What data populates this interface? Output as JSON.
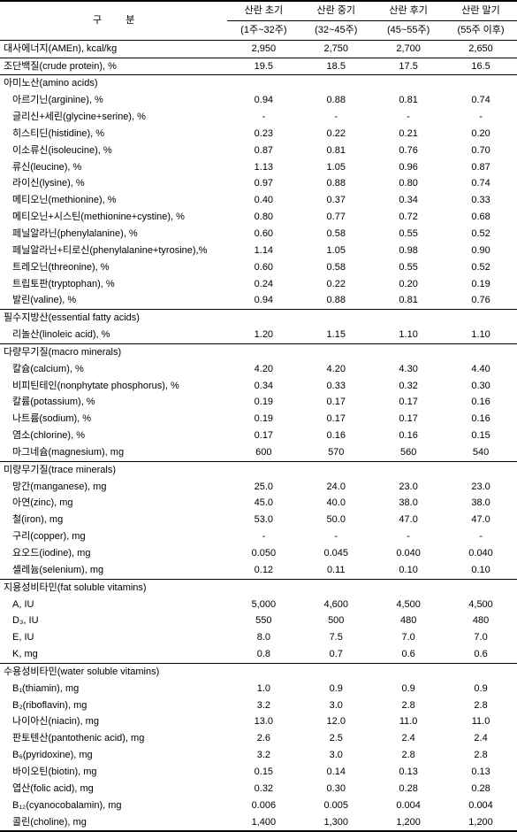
{
  "header": {
    "label": "구 분",
    "phases": [
      {
        "title": "산란 초기",
        "range": "(1주~32주)"
      },
      {
        "title": "산란 중기",
        "range": "(32~45주)"
      },
      {
        "title": "산란 후기",
        "range": "(45~55주)"
      },
      {
        "title": "산란 말기",
        "range": "(55주 이후)"
      }
    ]
  },
  "mainRows": {
    "energy": {
      "label": "대사에너지(AMEn), kcal/kg",
      "v": [
        "2,950",
        "2,750",
        "2,700",
        "2,650"
      ]
    },
    "protein": {
      "label": "조단백질(crude protein), %",
      "v": [
        "19.5",
        "18.5",
        "17.5",
        "16.5"
      ]
    }
  },
  "categories": [
    {
      "name": "아미노산(amino acids)",
      "items": [
        {
          "label": "아르기닌(arginine), %",
          "v": [
            "0.94",
            "0.88",
            "0.81",
            "0.74"
          ]
        },
        {
          "label": "글리신+세린(glycine+serine), %",
          "v": [
            "-",
            "-",
            "-",
            "-"
          ]
        },
        {
          "label": "히스티딘(histidine), %",
          "v": [
            "0.23",
            "0.22",
            "0.21",
            "0.20"
          ]
        },
        {
          "label": "이소류신(isoleucine), %",
          "v": [
            "0.87",
            "0.81",
            "0.76",
            "0.70"
          ]
        },
        {
          "label": "류신(leucine), %",
          "v": [
            "1.13",
            "1.05",
            "0.96",
            "0.87"
          ]
        },
        {
          "label": "라이신(lysine), %",
          "v": [
            "0.97",
            "0.88",
            "0.80",
            "0.74"
          ]
        },
        {
          "label": "메티오닌(methionine), %",
          "v": [
            "0.40",
            "0.37",
            "0.34",
            "0.33"
          ]
        },
        {
          "label": "메티오닌+시스틴(methionine+cystine), %",
          "v": [
            "0.80",
            "0.77",
            "0.72",
            "0.68"
          ]
        },
        {
          "label": "페닐알라닌(phenylalanine), %",
          "v": [
            "0.60",
            "0.58",
            "0.55",
            "0.52"
          ]
        },
        {
          "label": "페닐알라닌+티로신(phenylalanine+tyrosine),%",
          "v": [
            "1.14",
            "1.05",
            "0.98",
            "0.90"
          ]
        },
        {
          "label": "트레오닌(threonine), %",
          "v": [
            "0.60",
            "0.58",
            "0.55",
            "0.52"
          ]
        },
        {
          "label": "트립토판(tryptophan), %",
          "v": [
            "0.24",
            "0.22",
            "0.20",
            "0.19"
          ]
        },
        {
          "label": "발린(valine), %",
          "v": [
            "0.94",
            "0.88",
            "0.81",
            "0.76"
          ]
        }
      ]
    },
    {
      "name": "필수지방산(essential fatty acids)",
      "items": [
        {
          "label": "리놀산(linoleic acid), %",
          "v": [
            "1.20",
            "1.15",
            "1.10",
            "1.10"
          ]
        }
      ]
    },
    {
      "name": "다량무기질(macro minerals)",
      "items": [
        {
          "label": "칼슘(calcium), %",
          "v": [
            "4.20",
            "4.20",
            "4.30",
            "4.40"
          ]
        },
        {
          "label": "비피틴테인(nonphytate phosphorus), %",
          "v": [
            "0.34",
            "0.33",
            "0.32",
            "0.30"
          ]
        },
        {
          "label": "칼륨(potassium), %",
          "v": [
            "0.19",
            "0.17",
            "0.17",
            "0.16"
          ]
        },
        {
          "label": "나트륨(sodium), %",
          "v": [
            "0.19",
            "0.17",
            "0.17",
            "0.16"
          ]
        },
        {
          "label": "염소(chlorine), %",
          "v": [
            "0.17",
            "0.16",
            "0.16",
            "0.15"
          ]
        },
        {
          "label": "마그네슘(magnesium), mg",
          "v": [
            "600",
            "570",
            "560",
            "540"
          ]
        }
      ]
    },
    {
      "name": "미량무기질(trace minerals)",
      "items": [
        {
          "label": "망간(manganese), mg",
          "v": [
            "25.0",
            "24.0",
            "23.0",
            "23.0"
          ]
        },
        {
          "label": "아연(zinc), mg",
          "v": [
            "45.0",
            "40.0",
            "38.0",
            "38.0"
          ]
        },
        {
          "label": "철(iron), mg",
          "v": [
            "53.0",
            "50.0",
            "47.0",
            "47.0"
          ]
        },
        {
          "label": "구리(copper), mg",
          "v": [
            "-",
            "-",
            "-",
            "-"
          ]
        },
        {
          "label": "요오드(iodine), mg",
          "v": [
            "0.050",
            "0.045",
            "0.040",
            "0.040"
          ]
        },
        {
          "label": "셀레늄(selenium), mg",
          "v": [
            "0.12",
            "0.11",
            "0.10",
            "0.10"
          ]
        }
      ]
    },
    {
      "name": "지용성비타민(fat soluble vitamins)",
      "items": [
        {
          "label": "A, IU",
          "v": [
            "5,000",
            "4,600",
            "4,500",
            "4,500"
          ]
        },
        {
          "label": "D₃, IU",
          "v": [
            "550",
            "500",
            "480",
            "480"
          ]
        },
        {
          "label": "E, IU",
          "v": [
            "8.0",
            "7.5",
            "7.0",
            "7.0"
          ]
        },
        {
          "label": "K, mg",
          "v": [
            "0.8",
            "0.7",
            "0.6",
            "0.6"
          ]
        }
      ]
    },
    {
      "name": "수용성비타민(water soluble vitamins)",
      "items": [
        {
          "label": "B₁(thiamin), mg",
          "v": [
            "1.0",
            "0.9",
            "0.9",
            "0.9"
          ]
        },
        {
          "label": "B₂(riboflavin), mg",
          "v": [
            "3.2",
            "3.0",
            "2.8",
            "2.8"
          ]
        },
        {
          "label": "나이아신(niacin), mg",
          "v": [
            "13.0",
            "12.0",
            "11.0",
            "11.0"
          ]
        },
        {
          "label": "판토텐산(pantothenic acid), mg",
          "v": [
            "2.6",
            "2.5",
            "2.4",
            "2.4"
          ]
        },
        {
          "label": "B₆(pyridoxine), mg",
          "v": [
            "3.2",
            "3.0",
            "2.8",
            "2.8"
          ]
        },
        {
          "label": "바이오틴(biotin), mg",
          "v": [
            "0.15",
            "0.14",
            "0.13",
            "0.13"
          ]
        },
        {
          "label": "엽산(folic acid), mg",
          "v": [
            "0.32",
            "0.30",
            "0.28",
            "0.28"
          ]
        },
        {
          "label": "B₁₂(cyanocobalamin), mg",
          "v": [
            "0.006",
            "0.005",
            "0.004",
            "0.004"
          ]
        },
        {
          "label": "콜린(choline), mg",
          "v": [
            "1,400",
            "1,300",
            "1,200",
            "1,200"
          ]
        }
      ]
    }
  ]
}
